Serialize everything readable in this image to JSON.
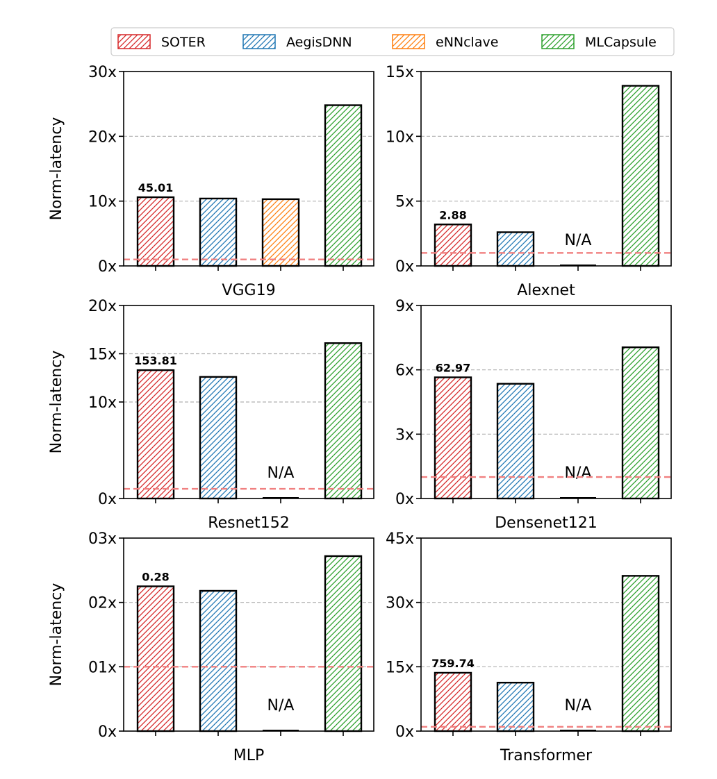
{
  "legend": [
    {
      "name": "SOTER",
      "color": "#d62728"
    },
    {
      "name": "AegisDNN",
      "color": "#1f77b4"
    },
    {
      "name": "eNNclave",
      "color": "#ff7f0e"
    },
    {
      "name": "MLCapsule",
      "color": "#2ca02c"
    }
  ],
  "chart_data": [
    {
      "type": "bar",
      "xlabel": "VGG19",
      "ylabel": "Norm-latency",
      "ticks": [
        0,
        10,
        20,
        30
      ],
      "tick_labels": [
        "0x",
        "10x",
        "20x",
        "30x"
      ],
      "ylim": [
        0,
        30
      ],
      "values": [
        10.6,
        10.4,
        10.3,
        24.8
      ],
      "na": [
        false,
        false,
        false,
        false
      ],
      "annotation": "45.01",
      "baseline": 1,
      "grid": [
        20,
        10
      ]
    },
    {
      "type": "bar",
      "xlabel": "Alexnet",
      "ylabel": "",
      "ticks": [
        0,
        5,
        10,
        15
      ],
      "tick_labels": [
        "0x",
        "5x",
        "10x",
        "15x"
      ],
      "ylim": [
        0,
        15
      ],
      "values": [
        3.2,
        2.6,
        0,
        13.9
      ],
      "na": [
        false,
        false,
        true,
        false
      ],
      "na_label": "N/A",
      "annotation": "2.88",
      "baseline": 1,
      "grid": [
        10,
        5
      ]
    },
    {
      "type": "bar",
      "xlabel": "Resnet152",
      "ylabel": "Norm-latency",
      "ticks": [
        0,
        10,
        15,
        20
      ],
      "tick_labels": [
        "0x",
        "10x",
        "15x",
        "20x"
      ],
      "ylim": [
        0,
        20
      ],
      "values": [
        13.3,
        12.6,
        0,
        16.1
      ],
      "na": [
        false,
        false,
        true,
        false
      ],
      "na_label": "N/A",
      "annotation": "153.81",
      "baseline": 1,
      "grid": [
        15,
        10
      ]
    },
    {
      "type": "bar",
      "xlabel": "Densenet121",
      "ylabel": "",
      "ticks": [
        0,
        3,
        6,
        9
      ],
      "tick_labels": [
        "0x",
        "3x",
        "6x",
        "9x"
      ],
      "ylim": [
        0,
        9
      ],
      "values": [
        5.65,
        5.35,
        0,
        7.05
      ],
      "na": [
        false,
        false,
        true,
        false
      ],
      "na_label": "N/A",
      "annotation": "62.97",
      "baseline": 1,
      "grid": [
        6,
        3
      ]
    },
    {
      "type": "bar",
      "xlabel": "MLP",
      "ylabel": "Norm-latency",
      "ticks": [
        0,
        1,
        2,
        3
      ],
      "tick_labels": [
        "0x",
        "01x",
        "02x",
        "03x"
      ],
      "ylim": [
        0,
        3
      ],
      "values": [
        2.25,
        2.18,
        0,
        2.72
      ],
      "na": [
        false,
        false,
        true,
        false
      ],
      "na_label": "N/A",
      "annotation": "0.28",
      "baseline": 1,
      "grid": [
        2,
        1
      ]
    },
    {
      "type": "bar",
      "xlabel": "Transformer",
      "ylabel": "",
      "ticks": [
        0,
        15,
        30,
        45
      ],
      "tick_labels": [
        "0x",
        "15x",
        "30x",
        "45x"
      ],
      "ylim": [
        0,
        45
      ],
      "values": [
        13.6,
        11.3,
        0,
        36.2
      ],
      "na": [
        false,
        false,
        true,
        false
      ],
      "na_label": "N/A",
      "annotation": "759.74",
      "baseline": 1,
      "grid": [
        30,
        15
      ]
    }
  ]
}
